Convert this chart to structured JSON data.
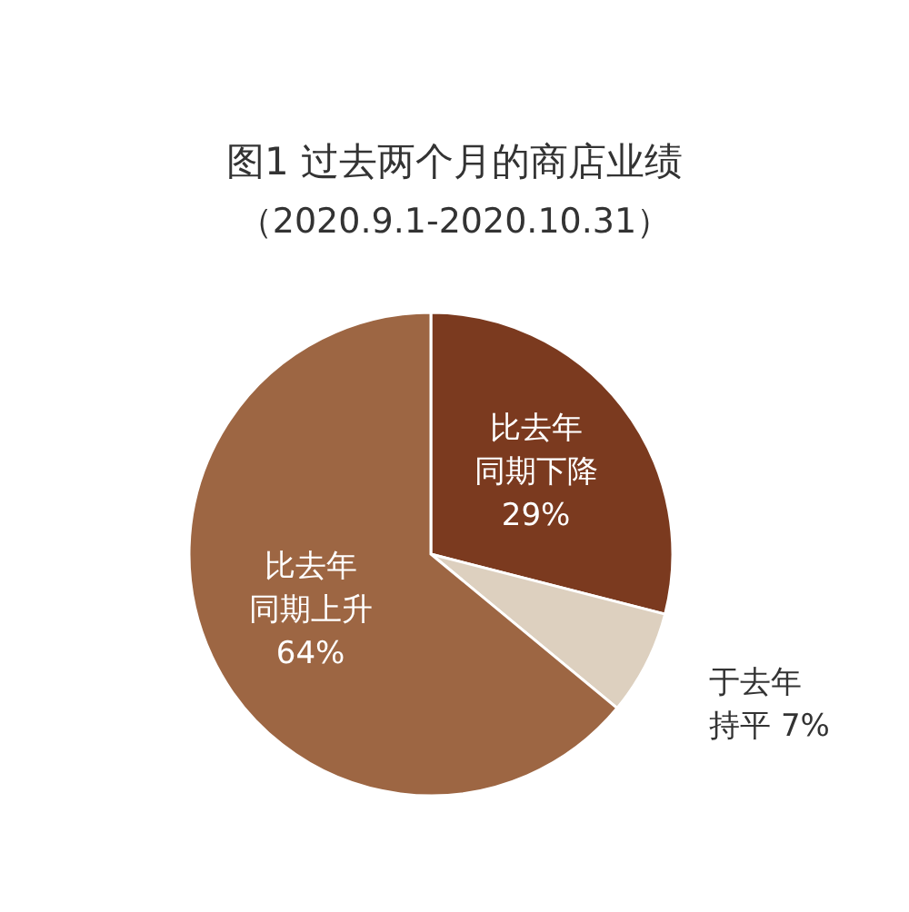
{
  "chart_data": {
    "type": "pie",
    "title": "图1  过去两个月的商店业绩",
    "subtitle": "（2020.9.1-2020.10.31）",
    "categories": [
      "比去年同期下降",
      "于去年持平",
      "比去年同期上升"
    ],
    "values": [
      29,
      7,
      64
    ],
    "value_labels": [
      "29%",
      "7%",
      "64%"
    ],
    "colors": [
      "#7b3a1f",
      "#ddd0bf",
      "#9d6643"
    ]
  }
}
